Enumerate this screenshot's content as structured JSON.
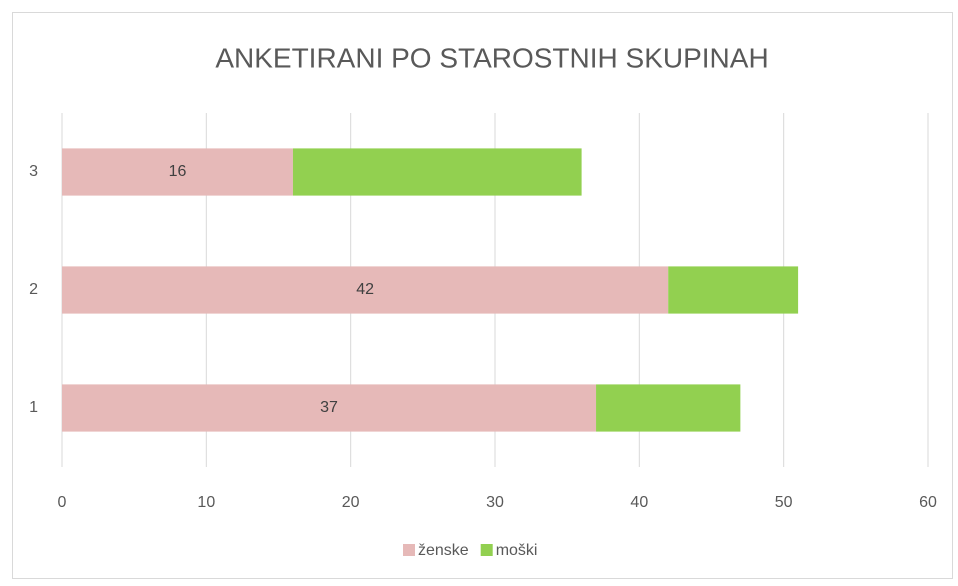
{
  "chart_data": {
    "type": "bar",
    "orientation": "horizontal",
    "stacked": true,
    "title": "ANKETIRANI PO STAROSTNIH SKUPINAH",
    "categories": [
      "1",
      "2",
      "3"
    ],
    "series": [
      {
        "name": "ženske",
        "color": "#e6b9b8",
        "values": [
          37,
          42,
          16
        ],
        "data_labels": true
      },
      {
        "name": "moški",
        "color": "#92d050",
        "values": [
          10,
          9,
          20
        ],
        "data_labels": false
      }
    ],
    "xlim": [
      0,
      60
    ],
    "xticks": [
      0,
      10,
      20,
      30,
      40,
      50,
      60
    ],
    "grid": true,
    "legend": "bottom"
  }
}
